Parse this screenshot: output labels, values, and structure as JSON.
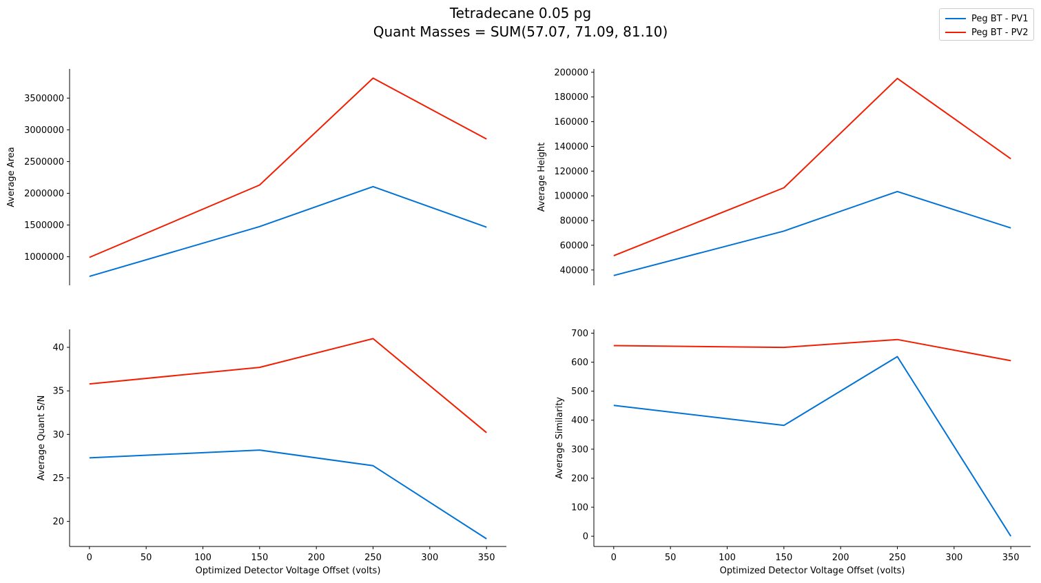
{
  "figure": {
    "title_line1": "Tetradecane 0.05 pg",
    "title_line2": "Quant Masses = SUM(57.07, 71.09, 81.10)"
  },
  "legend": [
    {
      "label": "Peg BT - PV1",
      "color": "#0072d6"
    },
    {
      "label": "Peg BT - PV2",
      "color": "#f21d00"
    }
  ],
  "chart_data": [
    {
      "type": "line",
      "title": "",
      "xlabel": "",
      "ylabel": "Average Area",
      "x": [
        0,
        150,
        250,
        350
      ],
      "xlim": [
        -17.5,
        367.5
      ],
      "ylim": [
        550000,
        3960000
      ],
      "yticks": [
        1000000,
        1500000,
        2000000,
        2500000,
        3000000,
        3500000
      ],
      "xticks": [],
      "series": [
        {
          "name": "Peg BT - PV1",
          "color": "#0072d6",
          "values": [
            690000,
            1475000,
            2105000,
            1465000
          ]
        },
        {
          "name": "Peg BT - PV2",
          "color": "#f21d00",
          "values": [
            990000,
            2130000,
            3815000,
            2855000
          ]
        }
      ]
    },
    {
      "type": "line",
      "title": "",
      "xlabel": "",
      "ylabel": "Average Height",
      "x": [
        0,
        150,
        250,
        350
      ],
      "xlim": [
        -17.5,
        367.5
      ],
      "ylim": [
        27600,
        202700
      ],
      "yticks": [
        40000,
        60000,
        80000,
        100000,
        120000,
        140000,
        160000,
        180000,
        200000
      ],
      "xticks": [],
      "series": [
        {
          "name": "Peg BT - PV1",
          "color": "#0072d6",
          "values": [
            35500,
            71500,
            103500,
            74000
          ]
        },
        {
          "name": "Peg BT - PV2",
          "color": "#f21d00",
          "values": [
            51500,
            106500,
            195000,
            130000
          ]
        }
      ]
    },
    {
      "type": "line",
      "title": "",
      "xlabel": "Optimized Detector Voltage Offset (volts)",
      "ylabel": "Average Quant S/N",
      "x": [
        0,
        150,
        250,
        350
      ],
      "xlim": [
        -17.5,
        367.5
      ],
      "ylim": [
        17.12,
        42.06
      ],
      "yticks": [
        20,
        25,
        30,
        35,
        40
      ],
      "xticks": [
        0,
        50,
        100,
        150,
        200,
        250,
        300,
        350
      ],
      "series": [
        {
          "name": "Peg BT - PV1",
          "color": "#0072d6",
          "values": [
            27.3,
            28.2,
            26.4,
            18.0
          ]
        },
        {
          "name": "Peg BT - PV2",
          "color": "#f21d00",
          "values": [
            35.8,
            37.7,
            41.0,
            30.2
          ]
        }
      ]
    },
    {
      "type": "line",
      "title": "",
      "xlabel": "Optimized Detector Voltage Offset (volts)",
      "ylabel": "Average Similarity",
      "x": [
        0,
        150,
        250,
        350
      ],
      "xlim": [
        -17.5,
        367.5
      ],
      "ylim": [
        -35.3,
        712.9
      ],
      "yticks": [
        0,
        100,
        200,
        300,
        400,
        500,
        600,
        700
      ],
      "xticks": [
        0,
        50,
        100,
        150,
        200,
        250,
        300,
        350
      ],
      "series": [
        {
          "name": "Peg BT - PV1",
          "color": "#0072d6",
          "values": [
            451,
            382,
            619,
            0
          ]
        },
        {
          "name": "Peg BT - PV2",
          "color": "#f21d00",
          "values": [
            657,
            651,
            678,
            605
          ]
        }
      ]
    }
  ]
}
